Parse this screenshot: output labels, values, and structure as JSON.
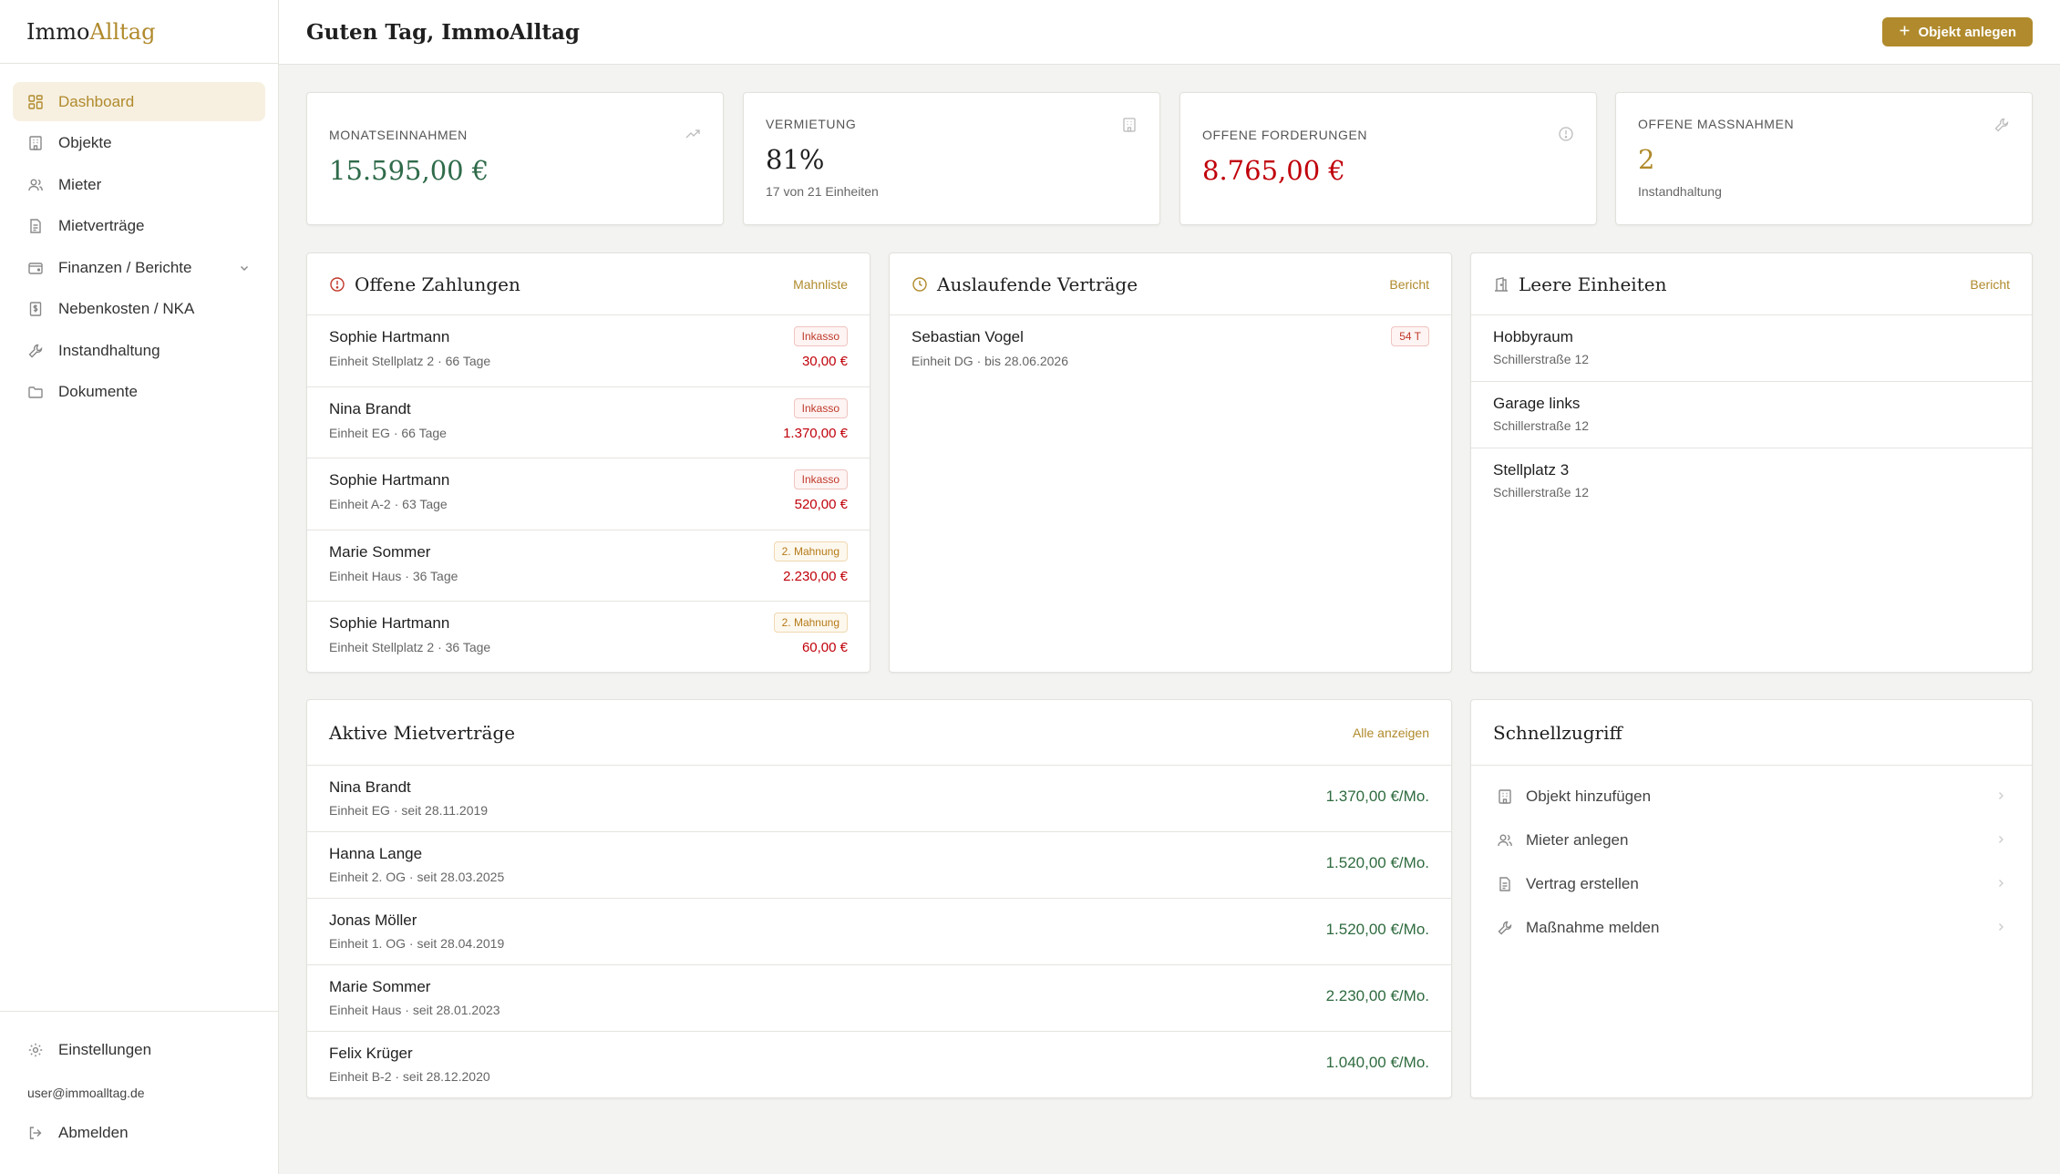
{
  "app": {
    "logo_part1": "Immo",
    "logo_part2": "Alltag"
  },
  "sidebar": {
    "items": [
      {
        "label": "Dashboard",
        "icon": "dashboard-icon"
      },
      {
        "label": "Objekte",
        "icon": "building-icon"
      },
      {
        "label": "Mieter",
        "icon": "users-icon"
      },
      {
        "label": "Mietverträge",
        "icon": "document-icon"
      },
      {
        "label": "Finanzen / Berichte",
        "icon": "wallet-icon"
      },
      {
        "label": "Nebenkosten / NKA",
        "icon": "receipt-icon"
      },
      {
        "label": "Instandhaltung",
        "icon": "wrench-icon"
      },
      {
        "label": "Dokumente",
        "icon": "folder-icon"
      }
    ],
    "settings_label": "Einstellungen",
    "user_email": "user@immoalltag.de",
    "logout_label": "Abmelden"
  },
  "header": {
    "title": "Guten Tag, ImmoAlltag",
    "create_button": "Objekt anlegen"
  },
  "kpis": {
    "income": {
      "label": "MONATSEINNAHMEN",
      "value": "15.595,00 €",
      "color": "#2f6b4a"
    },
    "rental": {
      "label": "VERMIETUNG",
      "value": "81%",
      "sub": "17 von 21 Einheiten",
      "color": "#1f1f1f"
    },
    "receivables": {
      "label": "OFFENE FORDERUNGEN",
      "value": "8.765,00 €",
      "color": "#c0000a"
    },
    "measures": {
      "label": "OFFENE MASSNAHMEN",
      "value": "2",
      "sub": "Instandhaltung",
      "color": "#b08a2c"
    }
  },
  "open_payments": {
    "title": "Offene Zahlungen",
    "link": "Mahnliste",
    "rows": [
      {
        "name": "Sophie Hartmann",
        "sub": "Einheit Stellplatz 2 · 66 Tage",
        "badge": "Inkasso",
        "amount": "30,00 €"
      },
      {
        "name": "Nina Brandt",
        "sub": "Einheit EG · 66 Tage",
        "badge": "Inkasso",
        "amount": "1.370,00 €"
      },
      {
        "name": "Sophie Hartmann",
        "sub": "Einheit A-2 · 63 Tage",
        "badge": "Inkasso",
        "amount": "520,00 €"
      },
      {
        "name": "Marie Sommer",
        "sub": "Einheit Haus · 36 Tage",
        "badge": "2. Mahnung",
        "amount": "2.230,00 €"
      },
      {
        "name": "Sophie Hartmann",
        "sub": "Einheit Stellplatz 2 · 36 Tage",
        "badge": "2. Mahnung",
        "amount": "60,00 €"
      }
    ]
  },
  "expiring": {
    "title": "Auslaufende Verträge",
    "link": "Bericht",
    "rows": [
      {
        "name": "Sebastian Vogel",
        "sub": "Einheit DG · bis 28.06.2026",
        "badge": "54 T"
      }
    ]
  },
  "vacant": {
    "title": "Leere Einheiten",
    "link": "Bericht",
    "rows": [
      {
        "name": "Hobbyraum",
        "sub": "Schillerstraße 12"
      },
      {
        "name": "Garage links",
        "sub": "Schillerstraße 12"
      },
      {
        "name": "Stellplatz 3",
        "sub": "Schillerstraße 12"
      }
    ]
  },
  "active_leases": {
    "title": "Aktive Mietverträge",
    "link": "Alle anzeigen",
    "rows": [
      {
        "name": "Nina Brandt",
        "sub": "Einheit EG · seit 28.11.2019",
        "amount": "1.370,00 €/Mo."
      },
      {
        "name": "Hanna Lange",
        "sub": "Einheit 2. OG · seit 28.03.2025",
        "amount": "1.520,00 €/Mo."
      },
      {
        "name": "Jonas Möller",
        "sub": "Einheit 1. OG · seit 28.04.2019",
        "amount": "1.520,00 €/Mo."
      },
      {
        "name": "Marie Sommer",
        "sub": "Einheit Haus · seit 28.01.2023",
        "amount": "2.230,00 €/Mo."
      },
      {
        "name": "Felix Krüger",
        "sub": "Einheit B-2 · seit 28.12.2020",
        "amount": "1.040,00 €/Mo."
      }
    ]
  },
  "quick_access": {
    "title": "Schnellzugriff",
    "items": [
      {
        "label": "Objekt hinzufügen",
        "icon": "building-icon"
      },
      {
        "label": "Mieter anlegen",
        "icon": "users-icon"
      },
      {
        "label": "Vertrag erstellen",
        "icon": "document-icon"
      },
      {
        "label": "Maßnahme melden",
        "icon": "wrench-icon"
      }
    ]
  },
  "colors": {
    "accent": "#b08a2c",
    "danger": "#c0000a",
    "success": "#2f6b3f"
  }
}
